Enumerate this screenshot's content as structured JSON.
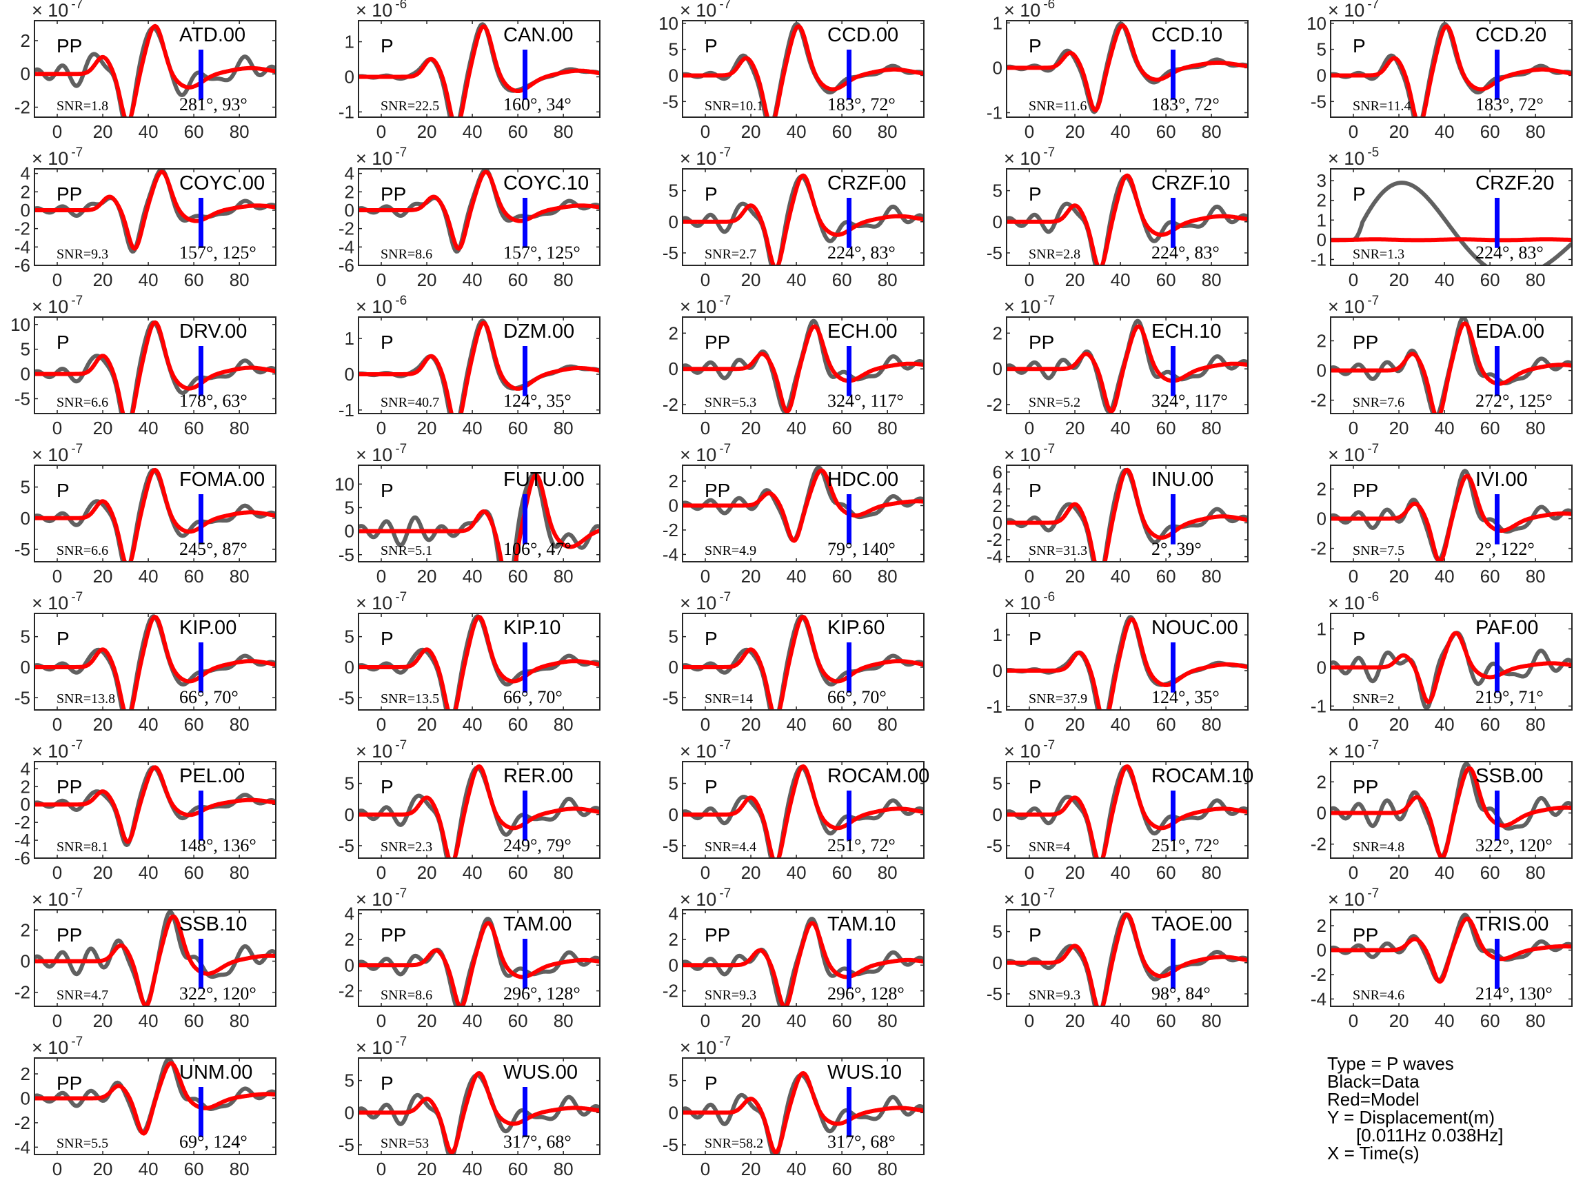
{
  "chart_data": {
    "type": "line",
    "xlim": [
      -10,
      96
    ],
    "xticks": [
      0,
      20,
      40,
      60,
      80
    ],
    "series_colors": {
      "data": "#606060",
      "model": "#ff0000",
      "marker": "#0000ff"
    },
    "panels": [
      {
        "station": "ATD.00",
        "phase": "PP",
        "snr": "SNR=1.8",
        "angles": "281°, 93°",
        "exp": "-7",
        "yticks": [
          -2,
          0,
          2
        ],
        "ylim": [
          -2.6,
          3.2
        ],
        "amp": 2.9,
        "shift": 0,
        "noise": 0.35
      },
      {
        "station": "CAN.00",
        "phase": "P",
        "snr": "SNR=22.5",
        "angles": "160°, 34°",
        "exp": "-6",
        "yticks": [
          -1,
          0,
          1
        ],
        "ylim": [
          -1.15,
          1.6
        ],
        "amp": 1.45,
        "shift": 2,
        "noise": 0.05
      },
      {
        "station": "CCD.00",
        "phase": "P",
        "snr": "SNR=10.1",
        "angles": "183°, 72°",
        "exp": "-7",
        "yticks": [
          -5,
          0,
          5,
          10
        ],
        "ylim": [
          -8,
          10.5
        ],
        "amp": 9.5,
        "shift": -2,
        "noise": 0.1
      },
      {
        "station": "CCD.10",
        "phase": "P",
        "snr": "SNR=11.6",
        "angles": "183°, 72°",
        "exp": "-6",
        "yticks": [
          -1,
          0,
          1
        ],
        "ylim": [
          -1.1,
          1.05
        ],
        "amp": 0.95,
        "shift": -2,
        "noise": 0.1
      },
      {
        "station": "CCD.20",
        "phase": "P",
        "snr": "SNR=11.4",
        "angles": "183°, 72°",
        "exp": "-7",
        "yticks": [
          -5,
          0,
          5,
          10
        ],
        "ylim": [
          -8,
          10.5
        ],
        "amp": 9.5,
        "shift": -2,
        "noise": 0.1
      },
      {
        "station": "COYC.00",
        "phase": "PP",
        "snr": "SNR=9.3",
        "angles": "157°, 125°",
        "exp": "-7",
        "yticks": [
          -6,
          -4,
          -2,
          0,
          2,
          4
        ],
        "ylim": [
          -6,
          4.5
        ],
        "amp": 4.2,
        "shift": 3,
        "noise": 0.2
      },
      {
        "station": "COYC.10",
        "phase": "PP",
        "snr": "SNR=8.6",
        "angles": "157°, 125°",
        "exp": "-7",
        "yticks": [
          -6,
          -4,
          -2,
          0,
          2,
          4
        ],
        "ylim": [
          -6,
          4.5
        ],
        "amp": 4.2,
        "shift": 3,
        "noise": 0.2
      },
      {
        "station": "CRZF.00",
        "phase": "P",
        "snr": "SNR=2.7",
        "angles": "224°, 83°",
        "exp": "-7",
        "yticks": [
          -5,
          0,
          5
        ],
        "ylim": [
          -7,
          8.5
        ],
        "amp": 7.5,
        "shift": 0,
        "noise": 0.3
      },
      {
        "station": "CRZF.10",
        "phase": "P",
        "snr": "SNR=2.8",
        "angles": "224°, 83°",
        "exp": "-7",
        "yticks": [
          -5,
          0,
          5
        ],
        "ylim": [
          -7,
          8.5
        ],
        "amp": 7.5,
        "shift": 0,
        "noise": 0.3
      },
      {
        "station": "CRZF.20",
        "phase": "P",
        "snr": "SNR=1.3",
        "angles": "224°, 83°",
        "exp": "-5",
        "yticks": [
          -1,
          0,
          1,
          2,
          3
        ],
        "ylim": [
          -1.3,
          3.6
        ],
        "amp": 0.05,
        "shift": 0,
        "noise": 0,
        "odd": true
      },
      {
        "station": "DRV.00",
        "phase": "P",
        "snr": "SNR=6.6",
        "angles": "178°, 63°",
        "exp": "-7",
        "yticks": [
          -5,
          0,
          5,
          10
        ],
        "ylim": [
          -8,
          11.5
        ],
        "amp": 10.5,
        "shift": 0,
        "noise": 0.2
      },
      {
        "station": "DZM.00",
        "phase": "P",
        "snr": "SNR=40.7",
        "angles": "124°, 35°",
        "exp": "-6",
        "yticks": [
          -1,
          0,
          1
        ],
        "ylim": [
          -1.1,
          1.6
        ],
        "amp": 1.45,
        "shift": 2,
        "noise": 0.05
      },
      {
        "station": "ECH.00",
        "phase": "PP",
        "snr": "SNR=5.3",
        "angles": "324°, 117°",
        "exp": "-7",
        "yticks": [
          -2,
          0,
          2
        ],
        "ylim": [
          -2.5,
          2.9
        ],
        "amp": 2.4,
        "shift": 5,
        "noise": 0.3
      },
      {
        "station": "ECH.10",
        "phase": "PP",
        "snr": "SNR=5.2",
        "angles": "324°, 117°",
        "exp": "-7",
        "yticks": [
          -2,
          0,
          2
        ],
        "ylim": [
          -2.5,
          2.9
        ],
        "amp": 2.4,
        "shift": 5,
        "noise": 0.3
      },
      {
        "station": "EDA.00",
        "phase": "PP",
        "snr": "SNR=7.6",
        "angles": "272°, 125°",
        "exp": "-7",
        "yticks": [
          -2,
          0,
          2
        ],
        "ylim": [
          -2.9,
          3.6
        ],
        "amp": 3.2,
        "shift": 6,
        "noise": 0.25
      },
      {
        "station": "FOMA.00",
        "phase": "P",
        "snr": "SNR=6.6",
        "angles": "245°, 87°",
        "exp": "-7",
        "yticks": [
          -5,
          0,
          5
        ],
        "ylim": [
          -7,
          8.5
        ],
        "amp": 7.8,
        "shift": 0,
        "noise": 0.2
      },
      {
        "station": "FUTU.00",
        "phase": "P",
        "snr": "SNR=5.1",
        "angles": "106°, 47°",
        "exp": "-7",
        "yticks": [
          -5,
          0,
          5,
          10
        ],
        "ylim": [
          -6.5,
          14
        ],
        "amp": 12,
        "shift": 25,
        "noise": 0.35
      },
      {
        "station": "HDC.00",
        "phase": "PP",
        "snr": "SNR=4.9",
        "angles": "79°, 140°",
        "exp": "-7",
        "yticks": [
          -4,
          -2,
          0,
          2
        ],
        "ylim": [
          -4.6,
          3.3
        ],
        "amp": 2.9,
        "shift": 8,
        "noise": 0.3
      },
      {
        "station": "INU.00",
        "phase": "P",
        "snr": "SNR=31.3",
        "angles": "2°, 39°",
        "exp": "-7",
        "yticks": [
          -4,
          -2,
          0,
          2,
          4,
          6
        ],
        "ylim": [
          -4.6,
          6.8
        ],
        "amp": 6.3,
        "shift": 0,
        "noise": 0.2
      },
      {
        "station": "IVI.00",
        "phase": "PP",
        "snr": "SNR=7.5",
        "angles": "2°, 122°",
        "exp": "-7",
        "yticks": [
          -2,
          0,
          2
        ],
        "ylim": [
          -2.9,
          3.6
        ],
        "amp": 2.9,
        "shift": 7,
        "noise": 0.3
      },
      {
        "station": "KIP.00",
        "phase": "P",
        "snr": "SNR=13.8",
        "angles": "66°, 70°",
        "exp": "-7",
        "yticks": [
          -5,
          0,
          5
        ],
        "ylim": [
          -7,
          8.8
        ],
        "amp": 8.3,
        "shift": 0,
        "noise": 0.15
      },
      {
        "station": "KIP.10",
        "phase": "P",
        "snr": "SNR=13.5",
        "angles": "66°, 70°",
        "exp": "-7",
        "yticks": [
          -5,
          0,
          5
        ],
        "ylim": [
          -7,
          8.8
        ],
        "amp": 8.3,
        "shift": 0,
        "noise": 0.15
      },
      {
        "station": "KIP.60",
        "phase": "P",
        "snr": "SNR=14",
        "angles": "66°, 70°",
        "exp": "-7",
        "yticks": [
          -5,
          0,
          5
        ],
        "ylim": [
          -7,
          8.8
        ],
        "amp": 8.3,
        "shift": 0,
        "noise": 0.15
      },
      {
        "station": "NOUC.00",
        "phase": "P",
        "snr": "SNR=37.9",
        "angles": "124°, 35°",
        "exp": "-6",
        "yticks": [
          -1,
          0,
          1
        ],
        "ylim": [
          -1.1,
          1.6
        ],
        "amp": 1.45,
        "shift": 2,
        "noise": 0.05
      },
      {
        "station": "PAF.00",
        "phase": "P",
        "snr": "SNR=2",
        "angles": "219°, 71°",
        "exp": "-6",
        "yticks": [
          -1,
          0,
          1
        ],
        "ylim": [
          -1.1,
          1.4
        ],
        "amp": 0.9,
        "shift": 2,
        "noise": 0.55
      },
      {
        "station": "PEL.00",
        "phase": "PP",
        "snr": "SNR=8.1",
        "angles": "148°, 136°",
        "exp": "-7",
        "yticks": [
          -6,
          -4,
          -2,
          0,
          2,
          4
        ],
        "ylim": [
          -6,
          4.8
        ],
        "amp": 4.2,
        "shift": 0,
        "noise": 0.2
      },
      {
        "station": "RER.00",
        "phase": "P",
        "snr": "SNR=2.3",
        "angles": "249°, 79°",
        "exp": "-7",
        "yticks": [
          -5,
          0,
          5
        ],
        "ylim": [
          -7,
          8.5
        ],
        "amp": 7.8,
        "shift": 0,
        "noise": 0.3
      },
      {
        "station": "ROCAM.00",
        "phase": "P",
        "snr": "SNR=4.4",
        "angles": "251°, 72°",
        "exp": "-7",
        "yticks": [
          -5,
          0,
          5
        ],
        "ylim": [
          -7,
          8.5
        ],
        "amp": 7.8,
        "shift": 0,
        "noise": 0.25
      },
      {
        "station": "ROCAM.10",
        "phase": "P",
        "snr": "SNR=4",
        "angles": "251°, 72°",
        "exp": "-7",
        "yticks": [
          -5,
          0,
          5
        ],
        "ylim": [
          -7,
          8.5
        ],
        "amp": 7.8,
        "shift": 0,
        "noise": 0.25
      },
      {
        "station": "SSB.00",
        "phase": "PP",
        "snr": "SNR=4.8",
        "angles": "322°, 120°",
        "exp": "-7",
        "yticks": [
          -2,
          0,
          2
        ],
        "ylim": [
          -2.9,
          3.3
        ],
        "amp": 2.9,
        "shift": 8,
        "noise": 0.4
      },
      {
        "station": "SSB.10",
        "phase": "PP",
        "snr": "SNR=4.7",
        "angles": "322°, 120°",
        "exp": "-7",
        "yticks": [
          -2,
          0,
          2
        ],
        "ylim": [
          -2.9,
          3.3
        ],
        "amp": 2.9,
        "shift": 8,
        "noise": 0.4
      },
      {
        "station": "TAM.00",
        "phase": "PP",
        "snr": "SNR=8.6",
        "angles": "296°, 128°",
        "exp": "-7",
        "yticks": [
          -2,
          0,
          2,
          4
        ],
        "ylim": [
          -3.2,
          4.3
        ],
        "amp": 3.3,
        "shift": 4,
        "noise": 0.3
      },
      {
        "station": "TAM.10",
        "phase": "PP",
        "snr": "SNR=9.3",
        "angles": "296°, 128°",
        "exp": "-7",
        "yticks": [
          -2,
          0,
          2,
          4
        ],
        "ylim": [
          -3.2,
          4.3
        ],
        "amp": 3.3,
        "shift": 4,
        "noise": 0.3
      },
      {
        "station": "TAOE.00",
        "phase": "P",
        "snr": "SNR=9.3",
        "angles": "98°, 84°",
        "exp": "-7",
        "yticks": [
          -5,
          0,
          5
        ],
        "ylim": [
          -7,
          8.5
        ],
        "amp": 7.8,
        "shift": 0,
        "noise": 0.15
      },
      {
        "station": "TRIS.00",
        "phase": "PP",
        "snr": "SNR=4.6",
        "angles": "214°, 130°",
        "exp": "-7",
        "yticks": [
          -4,
          -2,
          0,
          2
        ],
        "ylim": [
          -4.6,
          3.3
        ],
        "amp": 2.6,
        "shift": 7,
        "noise": 0.3
      },
      {
        "station": "UNM.00",
        "phase": "PP",
        "snr": "SNR=5.5",
        "angles": "69°, 124°",
        "exp": "-7",
        "yticks": [
          -4,
          -2,
          0,
          2
        ],
        "ylim": [
          -4.6,
          3.3
        ],
        "amp": 2.9,
        "shift": 7,
        "noise": 0.3
      },
      {
        "station": "WUS.00",
        "phase": "P",
        "snr": "SNR=53",
        "angles": "317°, 68°",
        "exp": "-7",
        "yticks": [
          -5,
          0,
          5
        ],
        "ylim": [
          -6.5,
          8.5
        ],
        "amp": 6.2,
        "shift": 0,
        "noise": 0.4
      },
      {
        "station": "WUS.10",
        "phase": "P",
        "snr": "SNR=58.2",
        "angles": "317°, 68°",
        "exp": "-7",
        "yticks": [
          -5,
          0,
          5
        ],
        "ylim": [
          -6.5,
          8.5
        ],
        "amp": 6.2,
        "shift": 0,
        "noise": 0.4
      }
    ]
  },
  "legend": {
    "type": "Type = P waves",
    "black": "Black=Data",
    "red": "Red=Model",
    "y": "Y = Displacement(m)",
    "band": "[0.011Hz 0.038Hz]",
    "x": "X = Time(s)"
  }
}
